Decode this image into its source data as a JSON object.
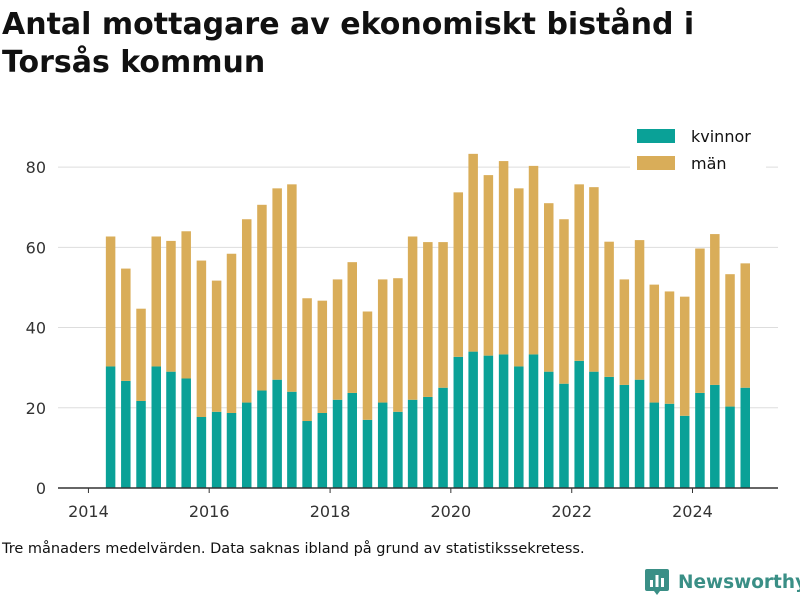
{
  "title": "Antal mottagare av ekonomiskt bistånd i Torsås kommun",
  "footnote": "Tre månaders medelvärden. Data saknas ibland på grund av statistikssekretess.",
  "brand": {
    "name": "Newsworthy",
    "icon": "newsworthy-bar-chart-logo-icon",
    "color": "#3a8f86"
  },
  "colors": {
    "kvinnor": "#0aa197",
    "man": "#d9ad59",
    "grid": "#dddddd",
    "axis": "#333333"
  },
  "chart_data": {
    "type": "bar",
    "stacked": true,
    "x_is": "date",
    "xlim": [
      "2013-07-01",
      "2025-06-01"
    ],
    "ylim": [
      0,
      88
    ],
    "yticks": [
      0,
      20,
      40,
      60,
      80
    ],
    "xticks": [
      "2014",
      "2016",
      "2018",
      "2020",
      "2022",
      "2024"
    ],
    "xtick_dates": [
      "2014-01-01",
      "2016-01-01",
      "2018-01-01",
      "2020-01-01",
      "2022-01-01",
      "2024-01-01"
    ],
    "grid": true,
    "legend_position": "top-right",
    "x": [
      "2014-05",
      "2014-08",
      "2014-11",
      "2015-02",
      "2015-05",
      "2015-08",
      "2015-11",
      "2016-02",
      "2016-05",
      "2016-08",
      "2016-11",
      "2017-02",
      "2017-05",
      "2017-08",
      "2017-11",
      "2018-02",
      "2018-05",
      "2018-08",
      "2018-11",
      "2019-02",
      "2019-05",
      "2019-08",
      "2019-11",
      "2020-02",
      "2020-05",
      "2020-08",
      "2020-11",
      "2021-02",
      "2021-05",
      "2021-08",
      "2021-11",
      "2022-02",
      "2022-05",
      "2022-08",
      "2022-11",
      "2023-02",
      "2023-05",
      "2023-08",
      "2023-11",
      "2024-02",
      "2024-05",
      "2024-08",
      "2024-11"
    ],
    "series": [
      {
        "name": "kvinnor",
        "color": "#0aa197",
        "values": [
          30.3,
          26.7,
          21.7,
          30.3,
          29.0,
          27.3,
          17.7,
          19.0,
          18.7,
          21.3,
          24.3,
          27.0,
          24.0,
          16.7,
          18.7,
          22.0,
          23.7,
          17.0,
          21.3,
          19.0,
          22.0,
          22.7,
          25.0,
          32.7,
          34.0,
          33.0,
          33.3,
          30.3,
          33.3,
          29.0,
          26.0,
          31.7,
          29.0,
          27.7,
          25.7,
          27.0,
          21.3,
          21.0,
          18.0,
          23.7,
          25.7,
          20.3,
          25.0
        ]
      },
      {
        "name": "män",
        "color": "#d9ad59",
        "values": [
          32.4,
          28.0,
          23.0,
          32.4,
          32.6,
          36.7,
          39.0,
          32.7,
          39.7,
          45.7,
          46.3,
          47.7,
          51.7,
          30.6,
          28.0,
          30.0,
          32.6,
          27.0,
          30.7,
          33.3,
          40.7,
          38.6,
          36.3,
          41.0,
          49.3,
          45.0,
          48.2,
          44.4,
          47.0,
          42.0,
          41.0,
          44.0,
          46.0,
          33.7,
          26.3,
          34.8,
          29.4,
          28.0,
          29.7,
          36.0,
          37.6,
          33.0,
          31.0
        ]
      }
    ]
  }
}
